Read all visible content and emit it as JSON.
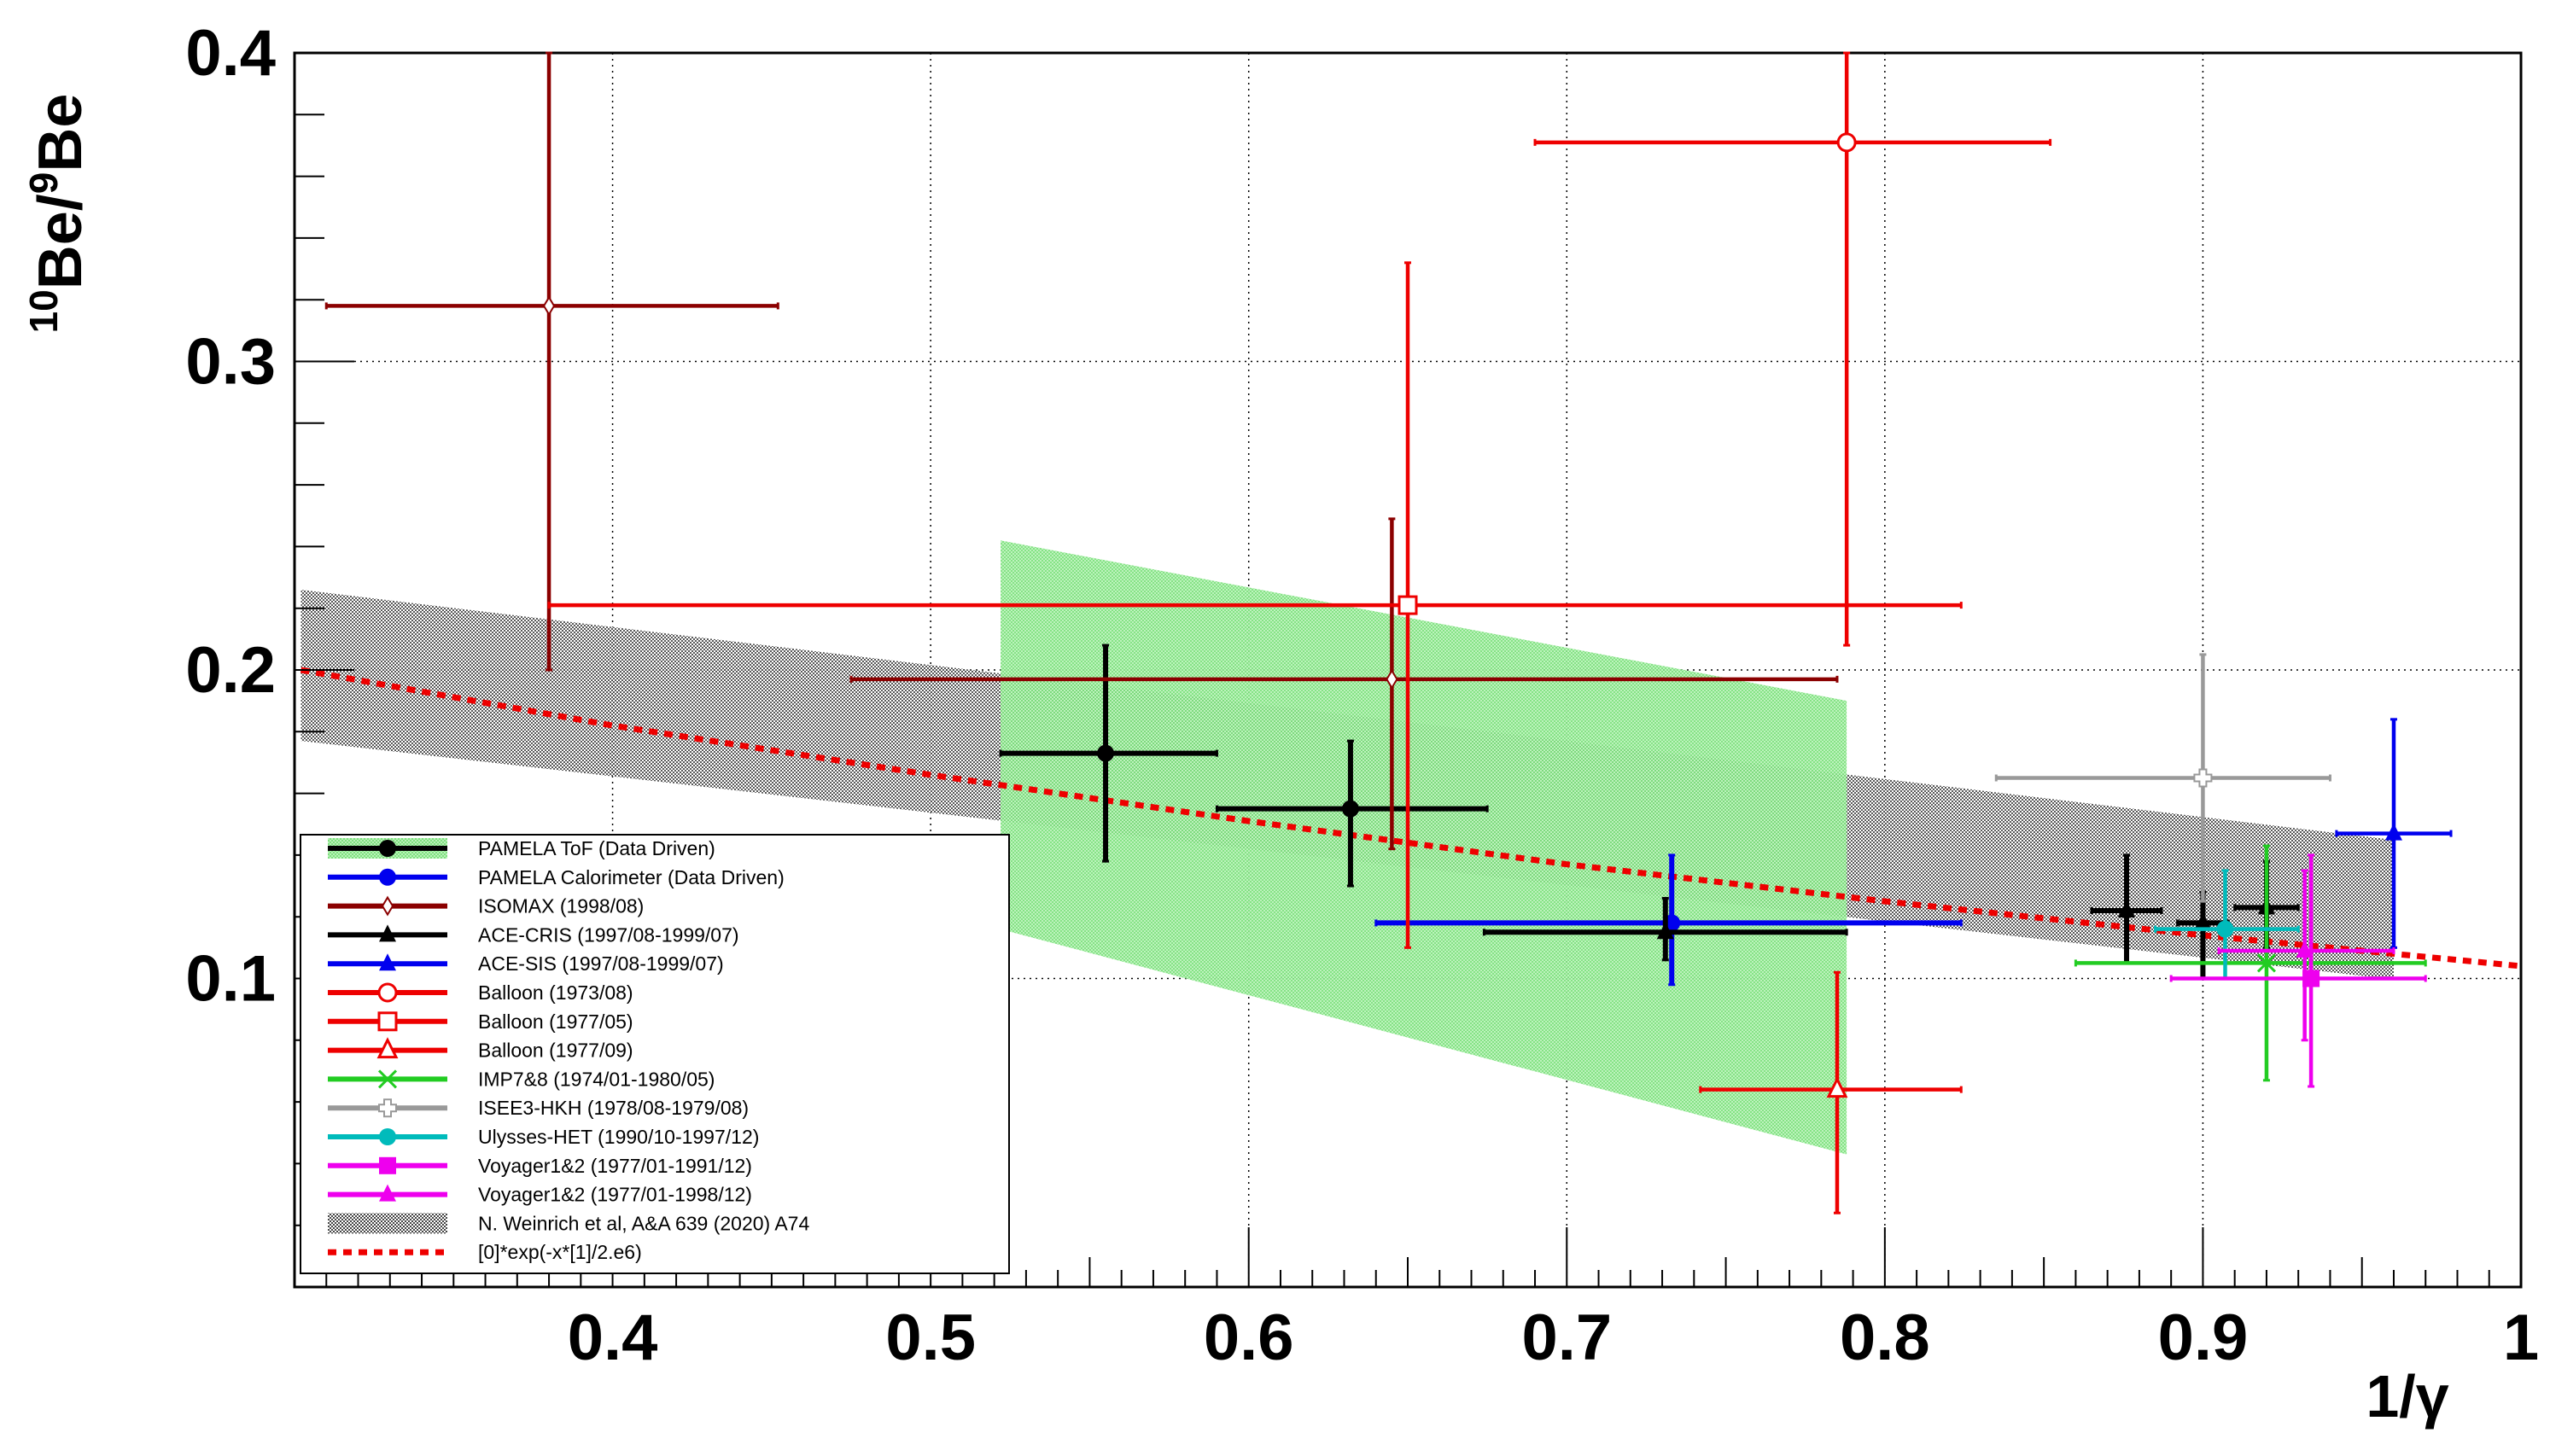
{
  "chart_data": {
    "type": "scatter",
    "xlabel": "1/γ",
    "ylabel_parts": [
      "10",
      "Be/",
      "9",
      "Be"
    ],
    "xlim": [
      0.3,
      1.0
    ],
    "ylim": [
      0.0,
      0.4
    ],
    "xticks": [
      0.4,
      0.5,
      0.6,
      0.7,
      0.8,
      0.9,
      1.0
    ],
    "xtick_labels": [
      "0.4",
      "0.5",
      "0.6",
      "0.7",
      "0.8",
      "0.9",
      "1"
    ],
    "yticks": [
      0.1,
      0.2,
      0.3,
      0.4
    ],
    "ytick_labels": [
      "0.1",
      "0.2",
      "0.3",
      "0.4"
    ],
    "grid": true,
    "legend_position": "bottom-left",
    "series": [
      {
        "name": "PAMELA ToF (Data Driven)",
        "color": "#000000",
        "marker": "circle-filled",
        "kind": "points",
        "points": [
          {
            "x": 0.555,
            "y": 0.173,
            "xlo": 0.522,
            "xhi": 0.59,
            "ylo": 0.138,
            "yhi": 0.208
          },
          {
            "x": 0.632,
            "y": 0.155,
            "xlo": 0.59,
            "xhi": 0.675,
            "ylo": 0.13,
            "yhi": 0.177
          }
        ]
      },
      {
        "name": "PAMELA Calorimeter (Data Driven)",
        "color": "#0000ee",
        "marker": "circle-filled",
        "kind": "points",
        "points": [
          {
            "x": 0.733,
            "y": 0.118,
            "xlo": 0.64,
            "xhi": 0.824,
            "ylo": 0.098,
            "yhi": 0.14
          }
        ]
      },
      {
        "name": "ISOMAX (1998/08)",
        "color": "#8b0000",
        "marker": "diamond-open",
        "kind": "points",
        "points": [
          {
            "x": 0.38,
            "y": 0.318,
            "xlo": 0.31,
            "xhi": 0.452,
            "ylo": 0.2,
            "yhi": 0.4
          },
          {
            "x": 0.645,
            "y": 0.197,
            "xlo": 0.475,
            "xhi": 0.785,
            "ylo": 0.142,
            "yhi": 0.249
          }
        ]
      },
      {
        "name": "ACE-CRIS (1997/08-1999/07)",
        "color": "#000000",
        "marker": "triangle-filled",
        "kind": "points",
        "points": [
          {
            "x": 0.731,
            "y": 0.115,
            "xlo": 0.674,
            "xhi": 0.788,
            "ylo": 0.106,
            "yhi": 0.126
          },
          {
            "x": 0.876,
            "y": 0.122,
            "xlo": 0.865,
            "xhi": 0.887,
            "ylo": 0.105,
            "yhi": 0.14
          },
          {
            "x": 0.9,
            "y": 0.118,
            "xlo": 0.892,
            "xhi": 0.908,
            "ylo": 0.1,
            "yhi": 0.128
          },
          {
            "x": 0.92,
            "y": 0.123,
            "xlo": 0.91,
            "xhi": 0.93,
            "ylo": 0.11,
            "yhi": 0.138
          }
        ]
      },
      {
        "name": "ACE-SIS (1997/08-1999/07)",
        "color": "#0000ee",
        "marker": "triangle-filled",
        "kind": "points",
        "points": [
          {
            "x": 0.96,
            "y": 0.147,
            "xlo": 0.942,
            "xhi": 0.978,
            "ylo": 0.11,
            "yhi": 0.184
          }
        ]
      },
      {
        "name": "Balloon (1973/08)",
        "color": "#ee0000",
        "marker": "circle-open",
        "kind": "points",
        "points": [
          {
            "x": 0.788,
            "y": 0.371,
            "xlo": 0.69,
            "xhi": 0.852,
            "ylo": 0.208,
            "yhi": 0.4
          }
        ]
      },
      {
        "name": "Balloon (1977/05)",
        "color": "#ee0000",
        "marker": "square-open",
        "kind": "points",
        "points": [
          {
            "x": 0.65,
            "y": 0.221,
            "xlo": 0.38,
            "xhi": 0.824,
            "ylo": 0.11,
            "yhi": 0.332
          }
        ]
      },
      {
        "name": "Balloon (1977/09)",
        "color": "#ee0000",
        "marker": "triangle-open",
        "kind": "points",
        "points": [
          {
            "x": 0.785,
            "y": 0.064,
            "xlo": 0.742,
            "xhi": 0.824,
            "ylo": 0.024,
            "yhi": 0.102
          }
        ]
      },
      {
        "name": "IMP7&8 (1974/01-1980/05)",
        "color": "#22cc22",
        "marker": "star",
        "kind": "points",
        "points": [
          {
            "x": 0.92,
            "y": 0.105,
            "xlo": 0.86,
            "xhi": 0.97,
            "ylo": 0.067,
            "yhi": 0.143
          }
        ]
      },
      {
        "name": "ISEE3-HKH (1978/08-1979/08)",
        "color": "#999999",
        "marker": "cross-open",
        "kind": "points",
        "points": [
          {
            "x": 0.9,
            "y": 0.165,
            "xlo": 0.835,
            "xhi": 0.94,
            "ylo": 0.125,
            "yhi": 0.205
          }
        ]
      },
      {
        "name": "Ulysses-HET (1990/10-1997/12)",
        "color": "#00bbbb",
        "marker": "circle-filled",
        "kind": "points",
        "points": [
          {
            "x": 0.907,
            "y": 0.116,
            "xlo": 0.885,
            "xhi": 0.93,
            "ylo": 0.1,
            "yhi": 0.135
          }
        ]
      },
      {
        "name": "Voyager1&2 (1977/01-1991/12)",
        "color": "#ee00ee",
        "marker": "square-filled",
        "kind": "points",
        "points": [
          {
            "x": 0.934,
            "y": 0.1,
            "xlo": 0.89,
            "xhi": 0.97,
            "ylo": 0.065,
            "yhi": 0.14
          }
        ]
      },
      {
        "name": "Voyager1&2 (1977/01-1998/12)",
        "color": "#ee00ee",
        "marker": "triangle-filled",
        "kind": "points",
        "points": [
          {
            "x": 0.932,
            "y": 0.109,
            "xlo": 0.905,
            "xhi": 0.96,
            "ylo": 0.08,
            "yhi": 0.135
          }
        ]
      },
      {
        "name": "N. Weinrich et al, A&A 639 (2020) A74",
        "color": "#555555",
        "kind": "band-legend"
      },
      {
        "name": "[0]*exp(-x*[1]/2.e6)",
        "color": "#ee0000",
        "kind": "curve",
        "points": [
          [
            0.302,
            0.2
          ],
          [
            0.4,
            0.182
          ],
          [
            0.5,
            0.166
          ],
          [
            0.6,
            0.151
          ],
          [
            0.7,
            0.137
          ],
          [
            0.8,
            0.125
          ],
          [
            0.9,
            0.114
          ],
          [
            1.0,
            0.104
          ]
        ]
      }
    ],
    "bands": [
      {
        "name": "N. Weinrich et al, A&A 639 (2020) A74",
        "color": "#555555",
        "kind": "band",
        "x": [
          0.302,
          1.0
        ],
        "lower": [
          0.177,
          0.095
        ],
        "upper": [
          0.226,
          0.14
        ],
        "x_end": 0.96
      },
      {
        "name": "",
        "color": "#66dd66",
        "kind": "band",
        "x": [
          0.522,
          0.788
        ],
        "lower": [
          0.116,
          0.043
        ],
        "upper": [
          0.242,
          0.19
        ]
      }
    ]
  }
}
